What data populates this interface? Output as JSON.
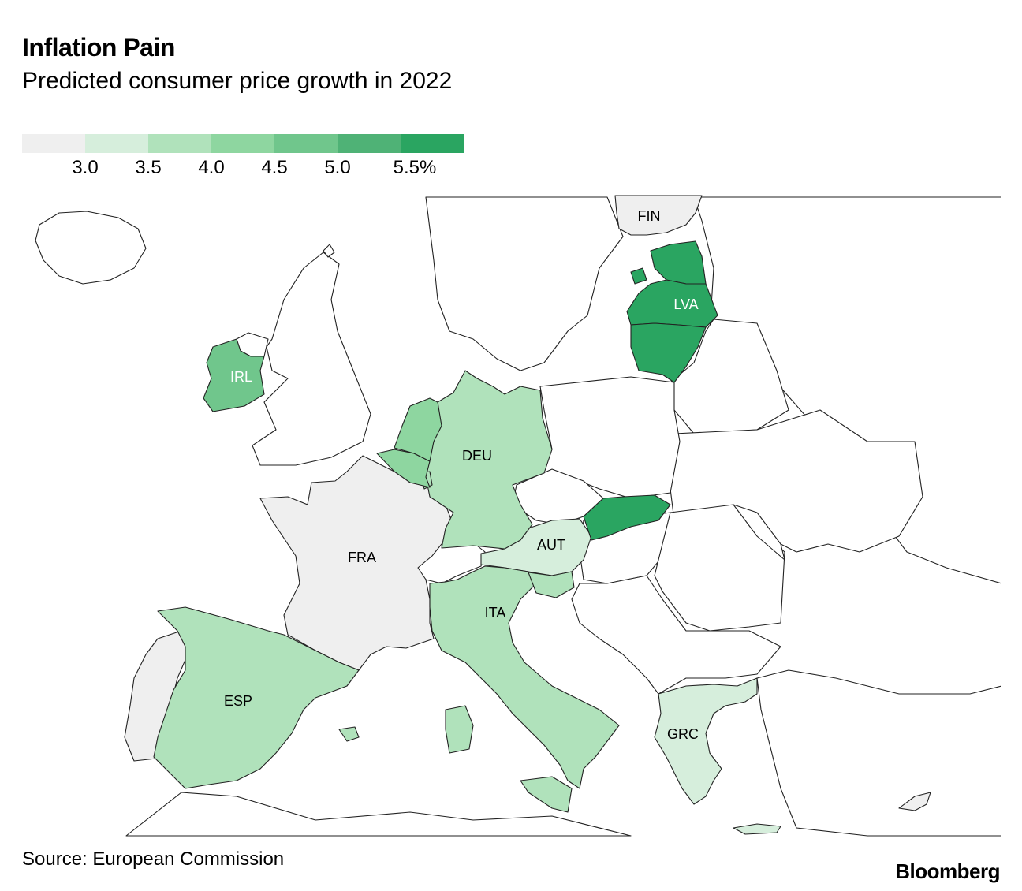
{
  "header": {
    "title": "Inflation Pain",
    "subtitle": "Predicted consumer price growth in 2022"
  },
  "legend": {
    "colors": [
      "#efefef",
      "#d6eedc",
      "#b0e2bb",
      "#8ed6a0",
      "#70c68c",
      "#4fb276",
      "#2aa561"
    ],
    "ticks": [
      "3.0",
      "3.5",
      "4.0",
      "4.5",
      "5.0",
      "5.5%"
    ]
  },
  "map": {
    "countries": [
      {
        "code": "FIN",
        "label": "FIN",
        "bin": 0
      },
      {
        "code": "FRA",
        "label": "FRA",
        "bin": 0
      },
      {
        "code": "PRT",
        "label": "",
        "bin": 0
      },
      {
        "code": "CYP",
        "label": "",
        "bin": 0
      },
      {
        "code": "AUT",
        "label": "AUT",
        "bin": 1
      },
      {
        "code": "GRC",
        "label": "GRC",
        "bin": 1
      },
      {
        "code": "DEU",
        "label": "DEU",
        "bin": 2
      },
      {
        "code": "ITA",
        "label": "ITA",
        "bin": 2
      },
      {
        "code": "ESP",
        "label": "ESP",
        "bin": 2
      },
      {
        "code": "SVN",
        "label": "",
        "bin": 2
      },
      {
        "code": "LUX",
        "label": "",
        "bin": 2
      },
      {
        "code": "BEL",
        "label": "",
        "bin": 3
      },
      {
        "code": "NLD",
        "label": "",
        "bin": 3
      },
      {
        "code": "IRL",
        "label": "IRL",
        "bin": 4
      },
      {
        "code": "EST",
        "label": "",
        "bin": 6
      },
      {
        "code": "LVA",
        "label": "LVA",
        "bin": 6
      },
      {
        "code": "LTU",
        "label": "",
        "bin": 6
      },
      {
        "code": "SVK",
        "label": "",
        "bin": 6
      }
    ]
  },
  "footer": {
    "source": "Source: European Commission",
    "brand": "Bloomberg"
  }
}
